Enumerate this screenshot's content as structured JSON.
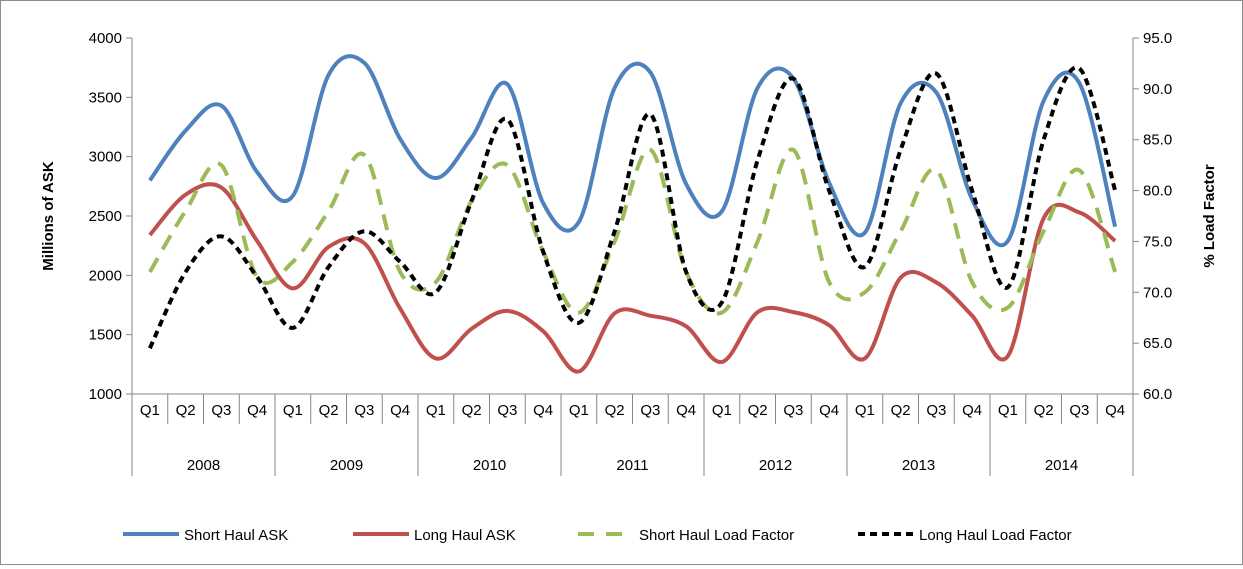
{
  "chart_data": {
    "type": "line",
    "title": "",
    "left_axis": {
      "label": "Millions of ASK",
      "min": 1000,
      "max": 4000,
      "step": 500,
      "ticks": [
        "1000",
        "1500",
        "2000",
        "2500",
        "3000",
        "3500",
        "4000"
      ]
    },
    "right_axis": {
      "label": "% Load Factor",
      "min": 60,
      "max": 95,
      "step": 5,
      "ticks": [
        "60.0",
        "65.0",
        "70.0",
        "75.0",
        "80.0",
        "85.0",
        "90.0",
        "95.0"
      ]
    },
    "quarters": [
      "Q1",
      "Q2",
      "Q3",
      "Q4"
    ],
    "years": [
      "2008",
      "2009",
      "2010",
      "2011",
      "2012",
      "2013",
      "2014"
    ],
    "grid": false,
    "legend_position": "bottom",
    "series": [
      {
        "name": "Short Haul ASK",
        "axis": "left",
        "color": "#4f81bd",
        "dash": "solid",
        "values": [
          2800,
          3220,
          3430,
          2870,
          2670,
          3690,
          3790,
          3150,
          2820,
          3160,
          3610,
          2610,
          2450,
          3580,
          3710,
          2770,
          2540,
          3580,
          3660,
          2780,
          2360,
          3450,
          3540,
          2640,
          2290,
          3470,
          3620,
          2410
        ]
      },
      {
        "name": "Long Haul ASK",
        "axis": "left",
        "color": "#c0504d",
        "dash": "solid",
        "values": [
          2340,
          2680,
          2740,
          2290,
          1890,
          2240,
          2270,
          1720,
          1300,
          1550,
          1700,
          1530,
          1190,
          1680,
          1660,
          1570,
          1270,
          1690,
          1690,
          1580,
          1300,
          1980,
          1940,
          1660,
          1320,
          2480,
          2530,
          2290
        ]
      },
      {
        "name": "Short Haul Load Factor",
        "axis": "right",
        "color": "#9bbb59",
        "dash": "dashed",
        "values": [
          72.0,
          78.0,
          82.5,
          71.5,
          73.0,
          78.0,
          83.5,
          72.0,
          71.0,
          79.0,
          82.5,
          74.0,
          68.0,
          75.0,
          84.0,
          72.0,
          68.0,
          75.0,
          84.0,
          71.0,
          70.0,
          76.0,
          82.0,
          71.0,
          68.5,
          76.0,
          82.0,
          72.0
        ]
      },
      {
        "name": "Long Haul Load Factor",
        "axis": "right",
        "color": "#000000",
        "dash": "dotted",
        "values": [
          64.5,
          72.0,
          75.5,
          71.5,
          66.5,
          72.5,
          76.0,
          73.0,
          70.0,
          79.0,
          87.0,
          74.0,
          67.0,
          76.0,
          87.5,
          72.0,
          69.0,
          83.0,
          91.0,
          80.0,
          72.5,
          84.0,
          91.5,
          80.0,
          70.5,
          85.0,
          92.0,
          80.0
        ]
      }
    ]
  }
}
